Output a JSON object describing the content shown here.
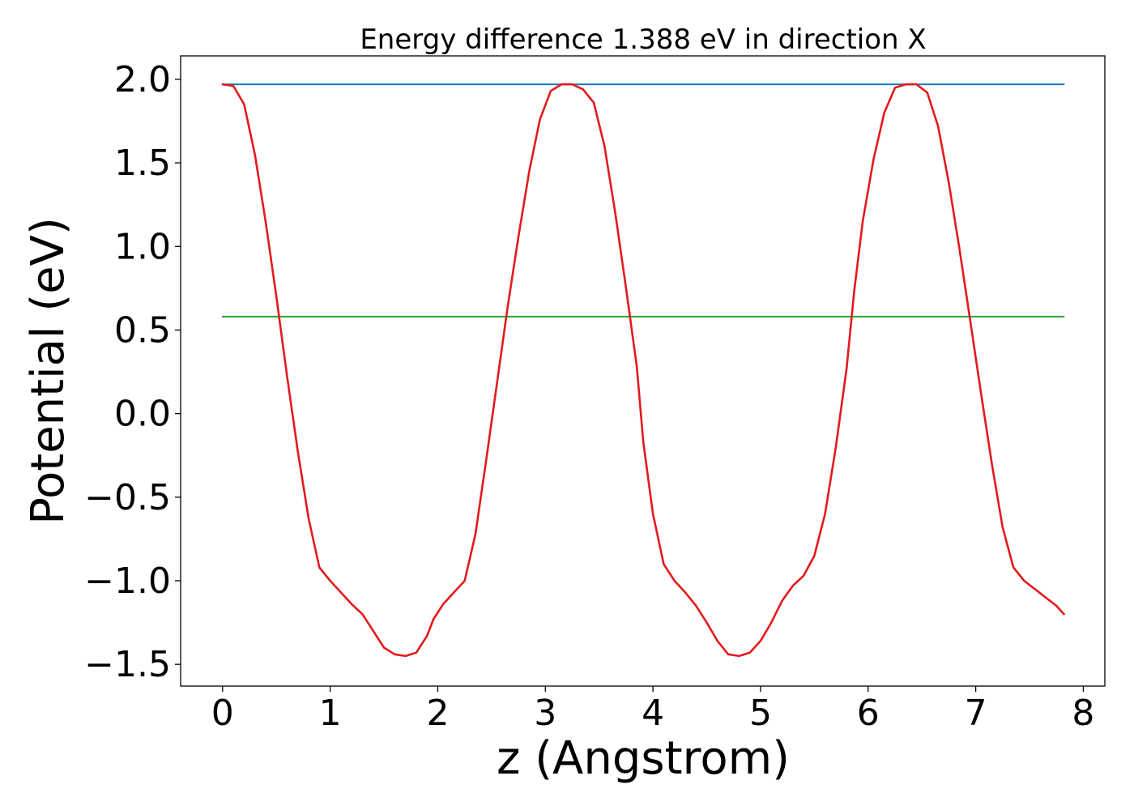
{
  "chart_data": {
    "type": "line",
    "title": "Energy difference 1.388 eV in direction X",
    "xlabel": "z (Angstrom)",
    "ylabel": "Potential (eV)",
    "xlim": [
      -0.39,
      8.2
    ],
    "ylim": [
      -1.63,
      2.14
    ],
    "xticks": [
      0,
      1,
      2,
      3,
      4,
      5,
      6,
      7,
      8
    ],
    "yticks": [
      2.0,
      1.5,
      1.0,
      0.5,
      0.0,
      -0.5,
      -1.0,
      -1.5
    ],
    "ytick_labels": [
      "2.0",
      "1.5",
      "1.0",
      "0.5",
      "0.0",
      "−0.5",
      "−1.0",
      "−1.5"
    ],
    "grid": false,
    "series": [
      {
        "color": "#1f77b4",
        "x": [
          0,
          7.82
        ],
        "y": [
          1.97,
          1.97
        ]
      },
      {
        "color": "#2ca02c",
        "x": [
          0,
          7.82
        ],
        "y": [
          0.58,
          0.58
        ]
      },
      {
        "color": "#e31a1c",
        "x": [
          0.0,
          0.1,
          0.2,
          0.3,
          0.4,
          0.5,
          0.6,
          0.7,
          0.8,
          0.9,
          1.0,
          1.1,
          1.2,
          1.3,
          1.4,
          1.5,
          1.6,
          1.7,
          1.8,
          1.9,
          1.96,
          2.05,
          2.15,
          2.25,
          2.35,
          2.45,
          2.55,
          2.65,
          2.75,
          2.85,
          2.95,
          3.05,
          3.15,
          3.25,
          3.35,
          3.45,
          3.55,
          3.65,
          3.75,
          3.85,
          3.91,
          4.0,
          4.1,
          4.2,
          4.3,
          4.4,
          4.5,
          4.6,
          4.7,
          4.8,
          4.9,
          5.0,
          5.1,
          5.2,
          5.3,
          5.4,
          5.5,
          5.6,
          5.7,
          5.8,
          5.87,
          5.95,
          6.05,
          6.15,
          6.25,
          6.35,
          6.45,
          6.55,
          6.65,
          6.75,
          6.85,
          6.95,
          7.05,
          7.15,
          7.25,
          7.35,
          7.45,
          7.55,
          7.65,
          7.75,
          7.82
        ],
        "y": [
          1.97,
          1.96,
          1.85,
          1.55,
          1.15,
          0.7,
          0.22,
          -0.23,
          -0.63,
          -0.92,
          -1.0,
          -1.07,
          -1.14,
          -1.2,
          -1.3,
          -1.4,
          -1.44,
          -1.45,
          -1.43,
          -1.33,
          -1.23,
          -1.14,
          -1.07,
          -1.0,
          -0.72,
          -0.28,
          0.18,
          0.64,
          1.06,
          1.45,
          1.76,
          1.93,
          1.97,
          1.97,
          1.94,
          1.86,
          1.6,
          1.2,
          0.75,
          0.28,
          -0.17,
          -0.6,
          -0.9,
          -1.0,
          -1.07,
          -1.15,
          -1.25,
          -1.36,
          -1.44,
          -1.45,
          -1.43,
          -1.36,
          -1.25,
          -1.12,
          -1.03,
          -0.97,
          -0.85,
          -0.6,
          -0.2,
          0.27,
          0.73,
          1.15,
          1.52,
          1.8,
          1.95,
          1.97,
          1.97,
          1.92,
          1.72,
          1.38,
          0.98,
          0.55,
          0.12,
          -0.3,
          -0.68,
          -0.92,
          -1.0,
          -1.05,
          -1.1,
          -1.15,
          -1.2
        ]
      }
    ]
  }
}
